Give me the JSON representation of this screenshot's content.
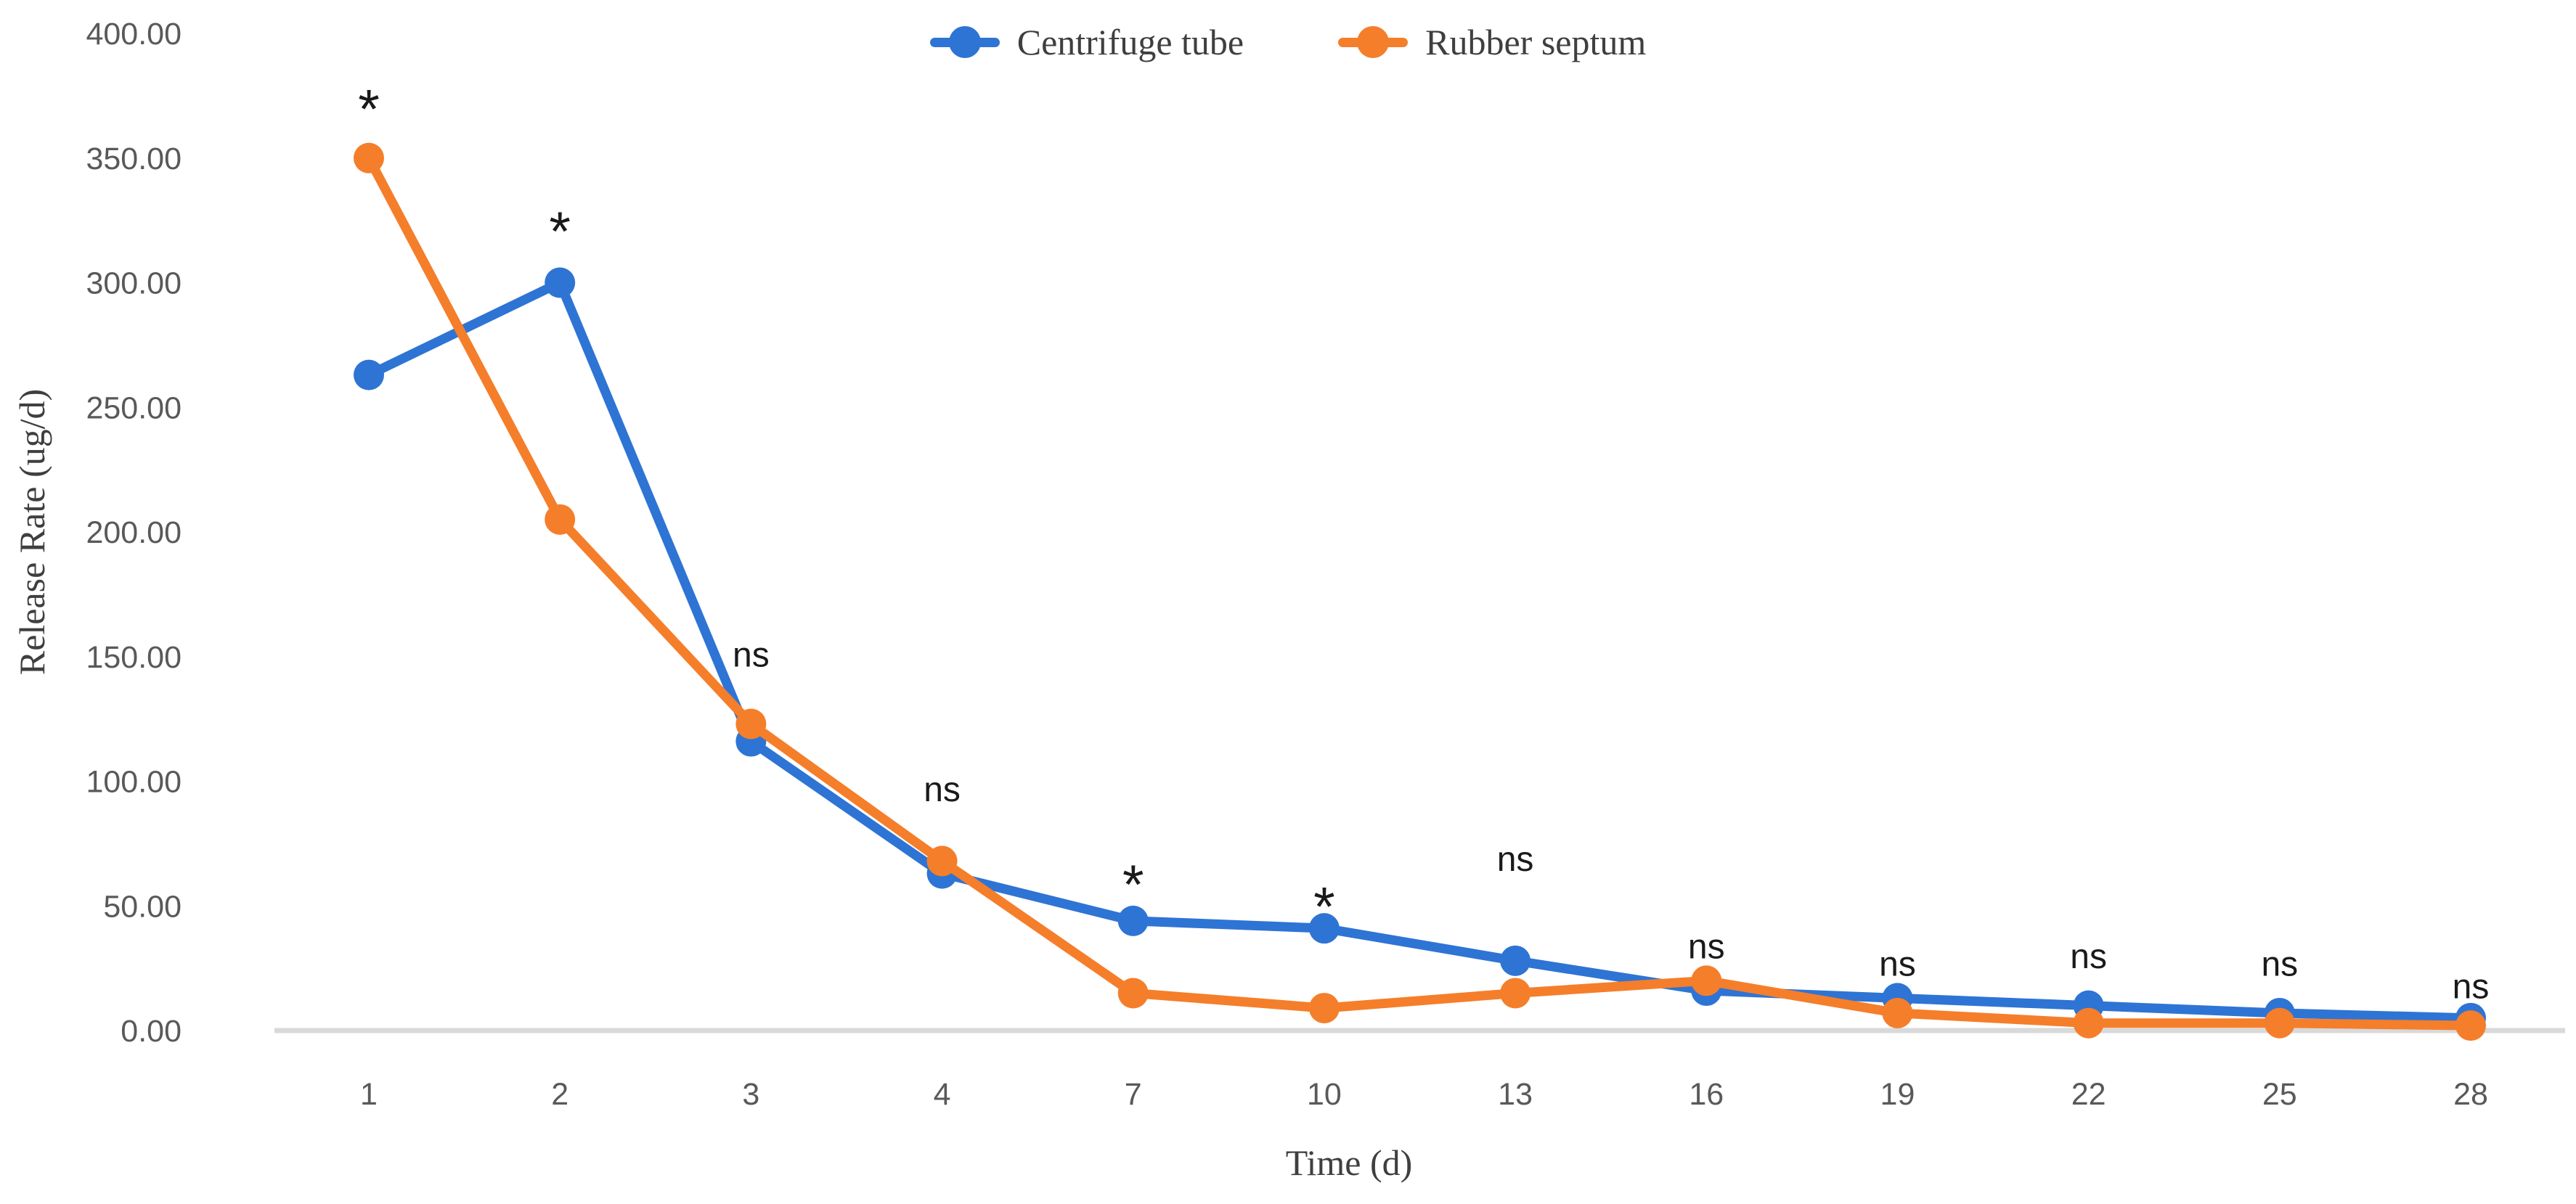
{
  "figure": {
    "background": "#ffffff",
    "text_color_titles": "#3f3f3f",
    "text_color_ticks": "#595959",
    "annotation_color": "#1a1a1a",
    "axis_line_color": "#d9d9d9"
  },
  "chart_data": {
    "type": "line",
    "title": "",
    "xlabel": "Time (d)",
    "ylabel": "Release Rate (ug/d)",
    "categories": [
      "1",
      "2",
      "3",
      "4",
      "7",
      "10",
      "13",
      "16",
      "19",
      "22",
      "25",
      "28"
    ],
    "series": [
      {
        "name": "Centrifuge tube",
        "color": "#2e74d4",
        "values": [
          263,
          300,
          116,
          63,
          44,
          41,
          28,
          16,
          13,
          10,
          7,
          5
        ]
      },
      {
        "name": "Rubber septum",
        "color": "#f57e2b",
        "values": [
          350,
          205,
          123,
          68,
          15,
          9,
          15,
          20,
          7,
          3,
          3,
          2
        ]
      }
    ],
    "annotations": [
      {
        "category": "1",
        "label": "*",
        "anchor_value": 362
      },
      {
        "category": "2",
        "label": "*",
        "anchor_value": 313
      },
      {
        "category": "3",
        "label": "ns",
        "anchor_value": 146
      },
      {
        "category": "4",
        "label": "ns",
        "anchor_value": 92
      },
      {
        "category": "7",
        "label": "*",
        "anchor_value": 51
      },
      {
        "category": "10",
        "label": "*",
        "anchor_value": 42
      },
      {
        "category": "13",
        "label": "ns",
        "anchor_value": 64
      },
      {
        "category": "16",
        "label": "ns",
        "anchor_value": 29
      },
      {
        "category": "19",
        "label": "ns",
        "anchor_value": 22
      },
      {
        "category": "22",
        "label": "ns",
        "anchor_value": 25
      },
      {
        "category": "25",
        "label": "ns",
        "anchor_value": 22
      },
      {
        "category": "28",
        "label": "ns",
        "anchor_value": 13
      }
    ],
    "y_axis": {
      "min": 0,
      "max": 400,
      "step": 50,
      "tick_labels": [
        "400.00",
        "350.00",
        "300.00",
        "250.00",
        "200.00",
        "150.00",
        "100.00",
        "50.00",
        "0.00"
      ]
    },
    "legend_position": "top-center",
    "grid": false
  }
}
